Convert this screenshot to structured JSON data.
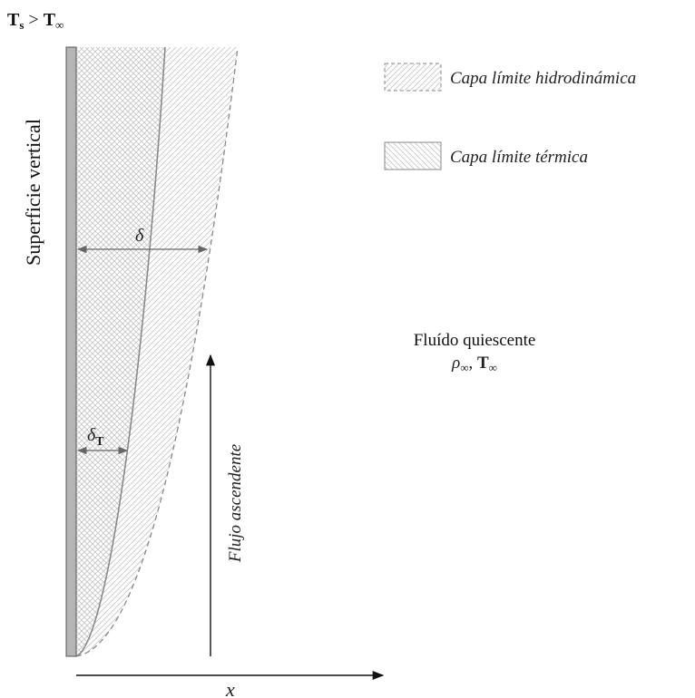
{
  "condition": {
    "left": "T",
    "left_sub": "s",
    "op": " > ",
    "right": "T",
    "right_sub": "∞"
  },
  "surface_label": "Superficie vertical",
  "legend": {
    "items": [
      {
        "label": "Capa límite hidrodinámica",
        "pattern": "diagonal-hatch"
      },
      {
        "label": "Capa límite térmica",
        "pattern": "back-diagonal-hatch"
      }
    ]
  },
  "fluid": {
    "line1": "Fluído quiescente",
    "rho": "ρ",
    "rho_sub": "∞",
    "sep": ", ",
    "t": "T",
    "t_sub": "∞"
  },
  "flow_label": "Flujo ascendente",
  "delta_label": "δ",
  "delta_t_label": "δ",
  "delta_t_sub": "T",
  "x_axis_label": "x",
  "colors": {
    "wall": "#b5b5b5",
    "boundary_line": "#8a8a8a",
    "hatch": "#bdbdbd",
    "arrow": "#666666"
  }
}
